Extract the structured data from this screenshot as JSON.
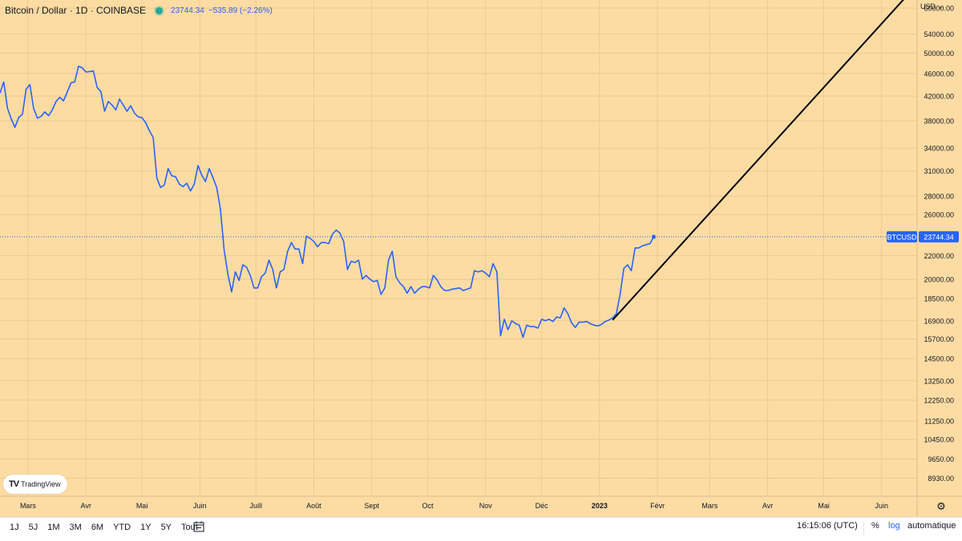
{
  "header": {
    "symbol": "Bitcoin / Dollar · 1D · COINBASE",
    "price": "23744.34",
    "change": "−535.89 (−2.26%)"
  },
  "logo": {
    "text": "TradingView"
  },
  "currency": "USD",
  "price_tag": {
    "label": "BTCUSD",
    "value": "23744.34"
  },
  "toolbar": {
    "ranges": [
      "1J",
      "5J",
      "1M",
      "3M",
      "6M",
      "YTD",
      "1Y",
      "5Y",
      "Tout"
    ],
    "time": "16:15:06 (UTC)",
    "percent": "%",
    "log": "log",
    "auto": "automatique"
  },
  "colors": {
    "background": "#fddca4",
    "line": "#2962ff",
    "trend": "#000000",
    "tag": "#2962ff"
  },
  "chart_data": {
    "type": "line",
    "title": "Bitcoin / Dollar · 1D · COINBASE",
    "scale": "log",
    "ylim": [
      8300,
      62000
    ],
    "xlim": [
      "2022-02-14",
      "2023-06-20"
    ],
    "grid": true,
    "y_ticks": [
      60000,
      54000,
      50000,
      46000,
      42000,
      38000,
      34000,
      31000,
      28000,
      26000,
      22000,
      20000,
      18500,
      16900,
      15700,
      14500,
      13250,
      12250,
      11250,
      10450,
      9650,
      8930
    ],
    "y_tick_labels": [
      "60000.00",
      "54000.00",
      "50000.00",
      "46000.00",
      "42000.00",
      "38000.00",
      "34000.00",
      "31000.00",
      "28000.00",
      "26000.00",
      "22000.00",
      "20000.00",
      "18500.00",
      "16900.00",
      "15700.00",
      "14500.00",
      "13250.00",
      "12250.00",
      "11250.00",
      "10450.00",
      "9650.00",
      "8930.00"
    ],
    "x_ticks": [
      "2022-03-01",
      "2022-04-01",
      "2022-05-01",
      "2022-06-01",
      "2022-07-01",
      "2022-08-01",
      "2022-09-01",
      "2022-10-01",
      "2022-11-01",
      "2022-12-01",
      "2023-01-01",
      "2023-02-01",
      "2023-03-01",
      "2023-04-01",
      "2023-05-01",
      "2023-06-01"
    ],
    "x_tick_labels": [
      "Mars",
      "Avr",
      "Mai",
      "Juin",
      "Juill",
      "Août",
      "Sept",
      "Oct",
      "Nov",
      "Déc",
      "2023",
      "Févr",
      "Mars",
      "Avr",
      "Mai",
      "Juin"
    ],
    "last_price": 23744.34,
    "series": [
      {
        "points": [
          [
            "2022-02-14",
            42500
          ],
          [
            "2022-02-16",
            44500
          ],
          [
            "2022-02-18",
            40000
          ],
          [
            "2022-02-20",
            38300
          ],
          [
            "2022-02-22",
            37000
          ],
          [
            "2022-02-24",
            38500
          ],
          [
            "2022-02-26",
            39000
          ],
          [
            "2022-02-28",
            43200
          ],
          [
            "2022-03-02",
            44000
          ],
          [
            "2022-03-04",
            40000
          ],
          [
            "2022-03-06",
            38400
          ],
          [
            "2022-03-08",
            38700
          ],
          [
            "2022-03-10",
            39400
          ],
          [
            "2022-03-12",
            38800
          ],
          [
            "2022-03-14",
            39700
          ],
          [
            "2022-03-16",
            41100
          ],
          [
            "2022-03-18",
            41800
          ],
          [
            "2022-03-20",
            41200
          ],
          [
            "2022-03-22",
            42700
          ],
          [
            "2022-03-24",
            44300
          ],
          [
            "2022-03-26",
            44500
          ],
          [
            "2022-03-28",
            47400
          ],
          [
            "2022-03-30",
            47100
          ],
          [
            "2022-04-01",
            46300
          ],
          [
            "2022-04-03",
            46400
          ],
          [
            "2022-04-05",
            46500
          ],
          [
            "2022-04-07",
            43500
          ],
          [
            "2022-04-09",
            42800
          ],
          [
            "2022-04-11",
            39500
          ],
          [
            "2022-04-13",
            41100
          ],
          [
            "2022-04-15",
            40500
          ],
          [
            "2022-04-17",
            39700
          ],
          [
            "2022-04-19",
            41500
          ],
          [
            "2022-04-21",
            40500
          ],
          [
            "2022-04-23",
            39500
          ],
          [
            "2022-04-25",
            40400
          ],
          [
            "2022-04-27",
            39200
          ],
          [
            "2022-04-29",
            38600
          ],
          [
            "2022-05-01",
            38500
          ],
          [
            "2022-05-03",
            37700
          ],
          [
            "2022-05-05",
            36500
          ],
          [
            "2022-05-07",
            35500
          ],
          [
            "2022-05-09",
            30100
          ],
          [
            "2022-05-11",
            29000
          ],
          [
            "2022-05-13",
            29300
          ],
          [
            "2022-05-15",
            31300
          ],
          [
            "2022-05-17",
            30400
          ],
          [
            "2022-05-19",
            30300
          ],
          [
            "2022-05-21",
            29400
          ],
          [
            "2022-05-23",
            29100
          ],
          [
            "2022-05-25",
            29500
          ],
          [
            "2022-05-27",
            28600
          ],
          [
            "2022-05-29",
            29400
          ],
          [
            "2022-05-31",
            31700
          ],
          [
            "2022-06-02",
            30500
          ],
          [
            "2022-06-04",
            29700
          ],
          [
            "2022-06-06",
            31300
          ],
          [
            "2022-06-08",
            30200
          ],
          [
            "2022-06-10",
            29000
          ],
          [
            "2022-06-12",
            26600
          ],
          [
            "2022-06-14",
            22500
          ],
          [
            "2022-06-16",
            20400
          ],
          [
            "2022-06-18",
            19000
          ],
          [
            "2022-06-20",
            20600
          ],
          [
            "2022-06-22",
            19900
          ],
          [
            "2022-06-24",
            21200
          ],
          [
            "2022-06-26",
            21000
          ],
          [
            "2022-06-28",
            20300
          ],
          [
            "2022-06-30",
            19300
          ],
          [
            "2022-07-02",
            19300
          ],
          [
            "2022-07-04",
            20200
          ],
          [
            "2022-07-06",
            20500
          ],
          [
            "2022-07-08",
            21600
          ],
          [
            "2022-07-10",
            20800
          ],
          [
            "2022-07-12",
            19300
          ],
          [
            "2022-07-14",
            20600
          ],
          [
            "2022-07-16",
            20800
          ],
          [
            "2022-07-18",
            22400
          ],
          [
            "2022-07-20",
            23200
          ],
          [
            "2022-07-22",
            22600
          ],
          [
            "2022-07-24",
            22600
          ],
          [
            "2022-07-26",
            21300
          ],
          [
            "2022-07-28",
            23800
          ],
          [
            "2022-07-30",
            23600
          ],
          [
            "2022-08-01",
            23300
          ],
          [
            "2022-08-03",
            22800
          ],
          [
            "2022-08-05",
            23200
          ],
          [
            "2022-08-07",
            23200
          ],
          [
            "2022-08-09",
            23100
          ],
          [
            "2022-08-11",
            24000
          ],
          [
            "2022-08-13",
            24400
          ],
          [
            "2022-08-15",
            24100
          ],
          [
            "2022-08-17",
            23300
          ],
          [
            "2022-08-19",
            20800
          ],
          [
            "2022-08-21",
            21500
          ],
          [
            "2022-08-23",
            21400
          ],
          [
            "2022-08-25",
            21600
          ],
          [
            "2022-08-27",
            20000
          ],
          [
            "2022-08-29",
            20300
          ],
          [
            "2022-08-31",
            20000
          ],
          [
            "2022-09-02",
            19800
          ],
          [
            "2022-09-04",
            19900
          ],
          [
            "2022-09-06",
            18800
          ],
          [
            "2022-09-08",
            19300
          ],
          [
            "2022-09-10",
            21600
          ],
          [
            "2022-09-12",
            22400
          ],
          [
            "2022-09-14",
            20200
          ],
          [
            "2022-09-16",
            19700
          ],
          [
            "2022-09-18",
            19400
          ],
          [
            "2022-09-20",
            18900
          ],
          [
            "2022-09-22",
            19400
          ],
          [
            "2022-09-24",
            18900
          ],
          [
            "2022-09-26",
            19200
          ],
          [
            "2022-09-28",
            19400
          ],
          [
            "2022-09-30",
            19400
          ],
          [
            "2022-10-02",
            19300
          ],
          [
            "2022-10-04",
            20300
          ],
          [
            "2022-10-06",
            19950
          ],
          [
            "2022-10-08",
            19400
          ],
          [
            "2022-10-10",
            19100
          ],
          [
            "2022-10-12",
            19100
          ],
          [
            "2022-10-14",
            19200
          ],
          [
            "2022-10-16",
            19250
          ],
          [
            "2022-10-18",
            19300
          ],
          [
            "2022-10-20",
            19100
          ],
          [
            "2022-10-22",
            19200
          ],
          [
            "2022-10-24",
            19300
          ],
          [
            "2022-10-26",
            20700
          ],
          [
            "2022-10-28",
            20600
          ],
          [
            "2022-10-30",
            20700
          ],
          [
            "2022-11-01",
            20500
          ],
          [
            "2022-11-03",
            20200
          ],
          [
            "2022-11-05",
            21300
          ],
          [
            "2022-11-07",
            20600
          ],
          [
            "2022-11-09",
            15900
          ],
          [
            "2022-11-11",
            17000
          ],
          [
            "2022-11-13",
            16300
          ],
          [
            "2022-11-15",
            16900
          ],
          [
            "2022-11-17",
            16700
          ],
          [
            "2022-11-19",
            16600
          ],
          [
            "2022-11-21",
            15800
          ],
          [
            "2022-11-23",
            16600
          ],
          [
            "2022-11-25",
            16500
          ],
          [
            "2022-11-27",
            16500
          ],
          [
            "2022-11-29",
            16400
          ],
          [
            "2022-12-01",
            17000
          ],
          [
            "2022-12-03",
            16900
          ],
          [
            "2022-12-05",
            17000
          ],
          [
            "2022-12-07",
            16850
          ],
          [
            "2022-12-09",
            17150
          ],
          [
            "2022-12-11",
            17100
          ],
          [
            "2022-12-13",
            17800
          ],
          [
            "2022-12-15",
            17400
          ],
          [
            "2022-12-17",
            16750
          ],
          [
            "2022-12-19",
            16450
          ],
          [
            "2022-12-21",
            16800
          ],
          [
            "2022-12-23",
            16800
          ],
          [
            "2022-12-25",
            16850
          ],
          [
            "2022-12-27",
            16700
          ],
          [
            "2022-12-29",
            16600
          ],
          [
            "2022-12-31",
            16550
          ],
          [
            "2023-01-02",
            16650
          ],
          [
            "2023-01-04",
            16850
          ],
          [
            "2023-01-06",
            16950
          ],
          [
            "2023-01-08",
            17100
          ],
          [
            "2023-01-10",
            17400
          ],
          [
            "2023-01-12",
            18800
          ],
          [
            "2023-01-14",
            20900
          ],
          [
            "2023-01-16",
            21200
          ],
          [
            "2023-01-18",
            20700
          ],
          [
            "2023-01-20",
            22700
          ],
          [
            "2023-01-22",
            22700
          ],
          [
            "2023-01-24",
            22900
          ],
          [
            "2023-01-26",
            23000
          ],
          [
            "2023-01-28",
            23100
          ],
          [
            "2023-01-30",
            23744.34
          ]
        ]
      }
    ],
    "trendline": {
      "from": [
        "2023-01-08",
        16950
      ],
      "to": [
        "2023-06-20",
        66000
      ]
    }
  }
}
